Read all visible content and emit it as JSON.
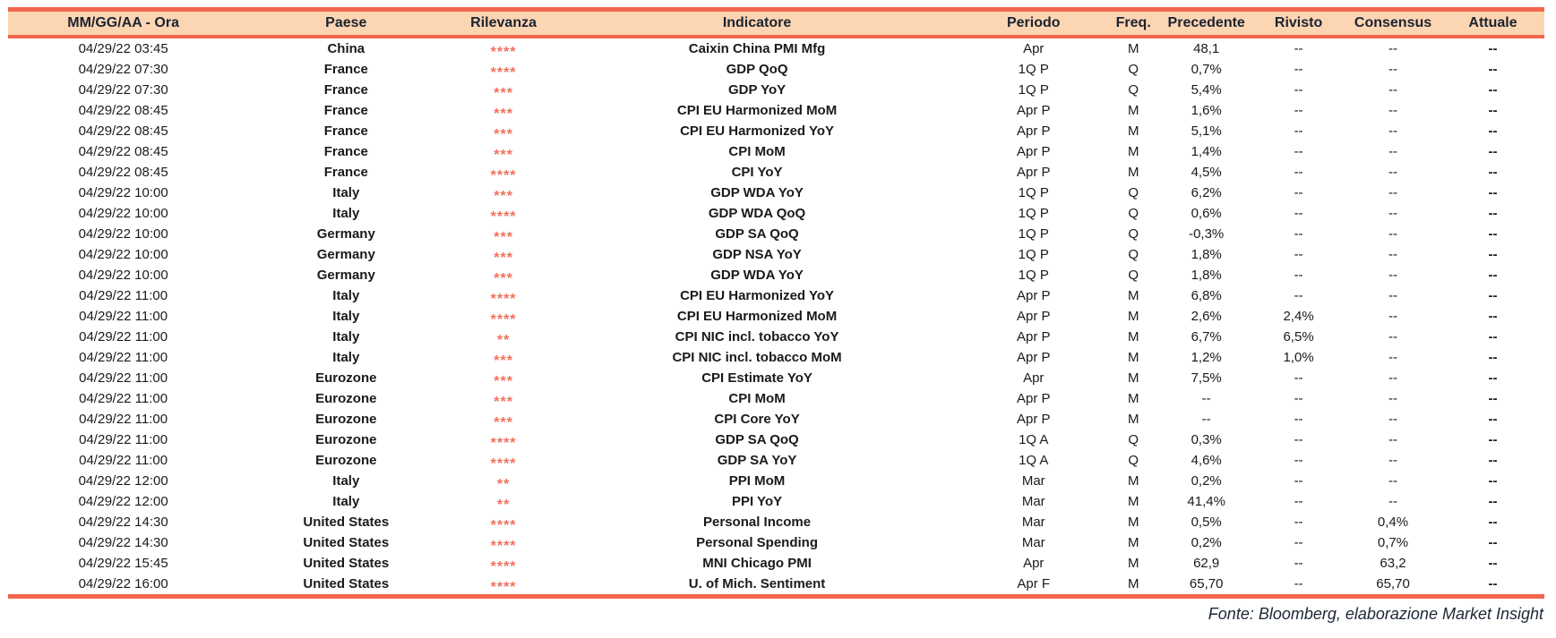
{
  "table": {
    "columns": [
      {
        "key": "datetime",
        "label": "MM/GG/AA - Ora"
      },
      {
        "key": "country",
        "label": "Paese"
      },
      {
        "key": "relevance",
        "label": "Rilevanza"
      },
      {
        "key": "indicator",
        "label": "Indicatore"
      },
      {
        "key": "period",
        "label": "Periodo"
      },
      {
        "key": "freq",
        "label": "Freq."
      },
      {
        "key": "previous",
        "label": "Precedente"
      },
      {
        "key": "revised",
        "label": "Rivisto"
      },
      {
        "key": "consensus",
        "label": "Consensus"
      },
      {
        "key": "actual",
        "label": "Attuale"
      }
    ],
    "rows": [
      {
        "datetime": "04/29/22 03:45",
        "country": "China",
        "relevance": 4,
        "indicator": "Caixin China PMI Mfg",
        "period": "Apr",
        "freq": "M",
        "previous": "48,1",
        "revised": "--",
        "consensus": "--",
        "actual": "--"
      },
      {
        "datetime": "04/29/22 07:30",
        "country": "France",
        "relevance": 4,
        "indicator": "GDP QoQ",
        "period": "1Q P",
        "freq": "Q",
        "previous": "0,7%",
        "revised": "--",
        "consensus": "--",
        "actual": "--"
      },
      {
        "datetime": "04/29/22 07:30",
        "country": "France",
        "relevance": 3,
        "indicator": "GDP YoY",
        "period": "1Q P",
        "freq": "Q",
        "previous": "5,4%",
        "revised": "--",
        "consensus": "--",
        "actual": "--"
      },
      {
        "datetime": "04/29/22 08:45",
        "country": "France",
        "relevance": 3,
        "indicator": "CPI EU Harmonized MoM",
        "period": "Apr P",
        "freq": "M",
        "previous": "1,6%",
        "revised": "--",
        "consensus": "--",
        "actual": "--"
      },
      {
        "datetime": "04/29/22 08:45",
        "country": "France",
        "relevance": 3,
        "indicator": "CPI EU Harmonized YoY",
        "period": "Apr P",
        "freq": "M",
        "previous": "5,1%",
        "revised": "--",
        "consensus": "--",
        "actual": "--"
      },
      {
        "datetime": "04/29/22 08:45",
        "country": "France",
        "relevance": 3,
        "indicator": "CPI MoM",
        "period": "Apr P",
        "freq": "M",
        "previous": "1,4%",
        "revised": "--",
        "consensus": "--",
        "actual": "--"
      },
      {
        "datetime": "04/29/22 08:45",
        "country": "France",
        "relevance": 4,
        "indicator": "CPI YoY",
        "period": "Apr P",
        "freq": "M",
        "previous": "4,5%",
        "revised": "--",
        "consensus": "--",
        "actual": "--"
      },
      {
        "datetime": "04/29/22 10:00",
        "country": "Italy",
        "relevance": 3,
        "indicator": "GDP WDA YoY",
        "period": "1Q P",
        "freq": "Q",
        "previous": "6,2%",
        "revised": "--",
        "consensus": "--",
        "actual": "--"
      },
      {
        "datetime": "04/29/22 10:00",
        "country": "Italy",
        "relevance": 4,
        "indicator": "GDP WDA QoQ",
        "period": "1Q P",
        "freq": "Q",
        "previous": "0,6%",
        "revised": "--",
        "consensus": "--",
        "actual": "--"
      },
      {
        "datetime": "04/29/22 10:00",
        "country": "Germany",
        "relevance": 3,
        "indicator": "GDP SA QoQ",
        "period": "1Q P",
        "freq": "Q",
        "previous": "-0,3%",
        "revised": "--",
        "consensus": "--",
        "actual": "--"
      },
      {
        "datetime": "04/29/22 10:00",
        "country": "Germany",
        "relevance": 3,
        "indicator": "GDP NSA YoY",
        "period": "1Q P",
        "freq": "Q",
        "previous": "1,8%",
        "revised": "--",
        "consensus": "--",
        "actual": "--"
      },
      {
        "datetime": "04/29/22 10:00",
        "country": "Germany",
        "relevance": 3,
        "indicator": "GDP WDA YoY",
        "period": "1Q P",
        "freq": "Q",
        "previous": "1,8%",
        "revised": "--",
        "consensus": "--",
        "actual": "--"
      },
      {
        "datetime": "04/29/22 11:00",
        "country": "Italy",
        "relevance": 4,
        "indicator": "CPI EU Harmonized YoY",
        "period": "Apr P",
        "freq": "M",
        "previous": "6,8%",
        "revised": "--",
        "consensus": "--",
        "actual": "--"
      },
      {
        "datetime": "04/29/22 11:00",
        "country": "Italy",
        "relevance": 4,
        "indicator": "CPI EU Harmonized MoM",
        "period": "Apr P",
        "freq": "M",
        "previous": "2,6%",
        "revised": "2,4%",
        "consensus": "--",
        "actual": "--"
      },
      {
        "datetime": "04/29/22 11:00",
        "country": "Italy",
        "relevance": 2,
        "indicator": "CPI NIC incl. tobacco YoY",
        "period": "Apr P",
        "freq": "M",
        "previous": "6,7%",
        "revised": "6,5%",
        "consensus": "--",
        "actual": "--"
      },
      {
        "datetime": "04/29/22 11:00",
        "country": "Italy",
        "relevance": 3,
        "indicator": "CPI NIC incl. tobacco MoM",
        "period": "Apr P",
        "freq": "M",
        "previous": "1,2%",
        "revised": "1,0%",
        "consensus": "--",
        "actual": "--"
      },
      {
        "datetime": "04/29/22 11:00",
        "country": "Eurozone",
        "relevance": 3,
        "indicator": "CPI Estimate YoY",
        "period": "Apr",
        "freq": "M",
        "previous": "7,5%",
        "revised": "--",
        "consensus": "--",
        "actual": "--"
      },
      {
        "datetime": "04/29/22 11:00",
        "country": "Eurozone",
        "relevance": 3,
        "indicator": "CPI MoM",
        "period": "Apr P",
        "freq": "M",
        "previous": "--",
        "revised": "--",
        "consensus": "--",
        "actual": "--"
      },
      {
        "datetime": "04/29/22 11:00",
        "country": "Eurozone",
        "relevance": 3,
        "indicator": "CPI Core YoY",
        "period": "Apr P",
        "freq": "M",
        "previous": "--",
        "revised": "--",
        "consensus": "--",
        "actual": "--"
      },
      {
        "datetime": "04/29/22 11:00",
        "country": "Eurozone",
        "relevance": 4,
        "indicator": "GDP SA QoQ",
        "period": "1Q A",
        "freq": "Q",
        "previous": "0,3%",
        "revised": "--",
        "consensus": "--",
        "actual": "--"
      },
      {
        "datetime": "04/29/22 11:00",
        "country": "Eurozone",
        "relevance": 4,
        "indicator": "GDP SA YoY",
        "period": "1Q A",
        "freq": "Q",
        "previous": "4,6%",
        "revised": "--",
        "consensus": "--",
        "actual": "--"
      },
      {
        "datetime": "04/29/22 12:00",
        "country": "Italy",
        "relevance": 2,
        "indicator": "PPI MoM",
        "period": "Mar",
        "freq": "M",
        "previous": "0,2%",
        "revised": "--",
        "consensus": "--",
        "actual": "--"
      },
      {
        "datetime": "04/29/22 12:00",
        "country": "Italy",
        "relevance": 2,
        "indicator": "PPI YoY",
        "period": "Mar",
        "freq": "M",
        "previous": "41,4%",
        "revised": "--",
        "consensus": "--",
        "actual": "--"
      },
      {
        "datetime": "04/29/22 14:30",
        "country": "United States",
        "relevance": 4,
        "indicator": "Personal Income",
        "period": "Mar",
        "freq": "M",
        "previous": "0,5%",
        "revised": "--",
        "consensus": "0,4%",
        "actual": "--"
      },
      {
        "datetime": "04/29/22 14:30",
        "country": "United States",
        "relevance": 4,
        "indicator": "Personal Spending",
        "period": "Mar",
        "freq": "M",
        "previous": "0,2%",
        "revised": "--",
        "consensus": "0,7%",
        "actual": "--"
      },
      {
        "datetime": "04/29/22 15:45",
        "country": "United States",
        "relevance": 4,
        "indicator": "MNI Chicago PMI",
        "period": "Apr",
        "freq": "M",
        "previous": "62,9",
        "revised": "--",
        "consensus": "63,2",
        "actual": "--"
      },
      {
        "datetime": "04/29/22 16:00",
        "country": "United States",
        "relevance": 4,
        "indicator": "U. of Mich. Sentiment",
        "period": "Apr F",
        "freq": "M",
        "previous": "65,70",
        "revised": "--",
        "consensus": "65,70",
        "actual": "--"
      }
    ]
  },
  "icons": {
    "relevance_star": "*"
  },
  "footer": {
    "source_note": "Fonte: Bloomberg, elaborazione Market Insight"
  },
  "colors": {
    "accent_red": "#f2654d",
    "header_bg": "#fcd5b3",
    "star": "#f4705c",
    "header_text": "#1b2330",
    "body_text": "#1a1a1a",
    "footer_text": "#1d2736"
  }
}
